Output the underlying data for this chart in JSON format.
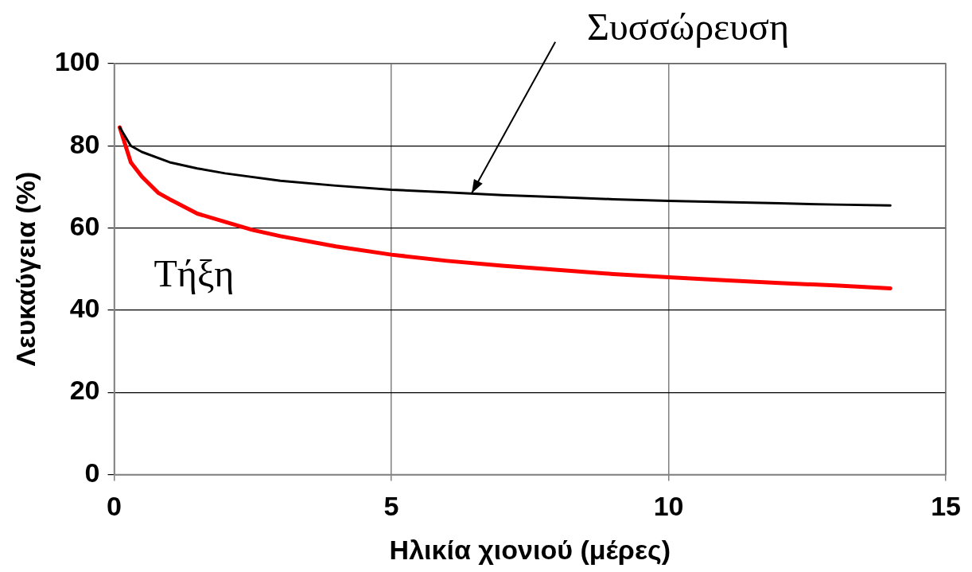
{
  "chart_data": {
    "type": "line",
    "xlabel": "Ηλικία χιονιού (μέρες)",
    "ylabel": "Λευκαύγεια (%)",
    "xlim": [
      0,
      15
    ],
    "xticks": [
      0,
      5,
      10,
      15
    ],
    "ylim": [
      0,
      100
    ],
    "yticks": [
      0,
      20,
      40,
      60,
      80,
      100
    ],
    "grid": true,
    "legend": false,
    "marker": "none",
    "line_style": "solid",
    "series": [
      {
        "color": "#000000",
        "x": [
          0.1,
          0.3,
          0.5,
          1,
          1.5,
          2,
          3,
          4,
          5,
          6,
          7,
          8,
          9,
          10,
          11,
          12,
          13,
          14
        ],
        "values": [
          84.5,
          80,
          78.5,
          76,
          74.5,
          73.3,
          71.5,
          70.3,
          69.3,
          68.7,
          68,
          67.5,
          67,
          66.6,
          66.3,
          66,
          65.7,
          65.5
        ]
      },
      {
        "color": "#ff0000",
        "x": [
          0.1,
          0.3,
          0.5,
          0.8,
          1,
          1.5,
          2,
          2.5,
          3,
          4,
          5,
          6,
          7,
          8,
          9,
          10,
          11,
          12,
          13,
          14
        ],
        "values": [
          84.5,
          76,
          72.5,
          68.5,
          67,
          63.5,
          61.5,
          59.5,
          58,
          55.5,
          53.5,
          52,
          50.8,
          49.8,
          48.8,
          48,
          47.3,
          46.6,
          46,
          45.3
        ]
      }
    ],
    "annotations": [
      {
        "text": "Συσσώρευση",
        "x": 6.45,
        "y": 68.5
      },
      "Τήξη"
    ]
  }
}
